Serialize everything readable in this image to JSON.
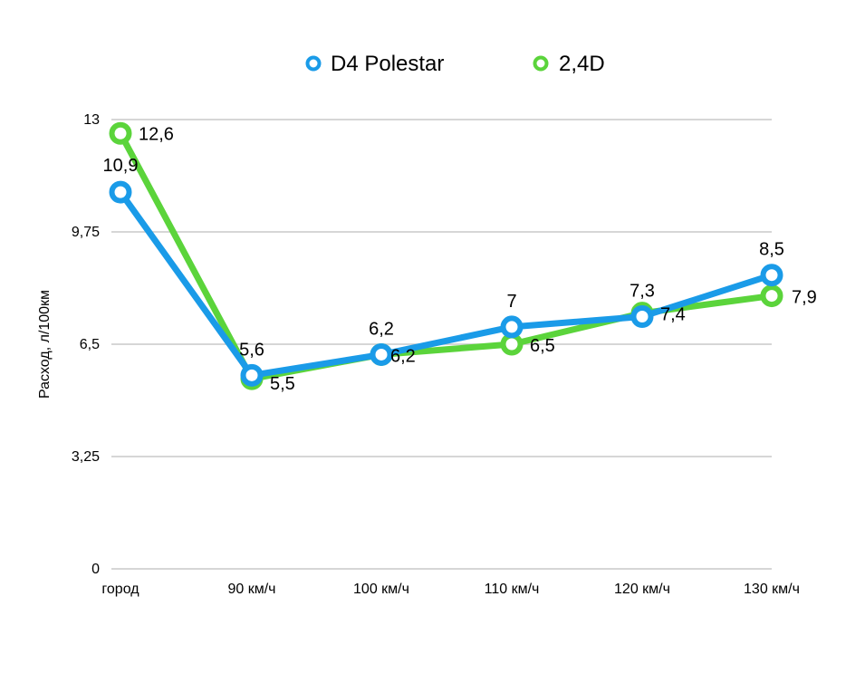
{
  "chart_data": {
    "type": "line",
    "title": "",
    "xlabel": "",
    "ylabel": "Расход, л/100км",
    "ylim": [
      0,
      13
    ],
    "yticks": [
      "0",
      "3,25",
      "6,5",
      "9,75",
      "13"
    ],
    "grid": true,
    "legend_position": "top",
    "categories": [
      "город",
      "90 км/ч",
      "100 км/ч",
      "110 км/ч",
      "120 км/ч",
      "130 км/ч"
    ],
    "series": [
      {
        "name": "D4 Polestar",
        "color": "#1a9be8",
        "values": [
          10.9,
          5.6,
          6.2,
          7,
          7.3,
          8.5
        ],
        "labels": [
          "10,9",
          "5,6",
          "6,2",
          "7",
          "7,3",
          "8,5"
        ]
      },
      {
        "name": "2,4D",
        "color": "#5bd43b",
        "values": [
          12.6,
          5.5,
          6.2,
          6.5,
          7.4,
          7.9
        ],
        "labels": [
          "12,6",
          "5,5",
          "6,2",
          "6,5",
          "7,4",
          "7,9"
        ]
      }
    ]
  }
}
